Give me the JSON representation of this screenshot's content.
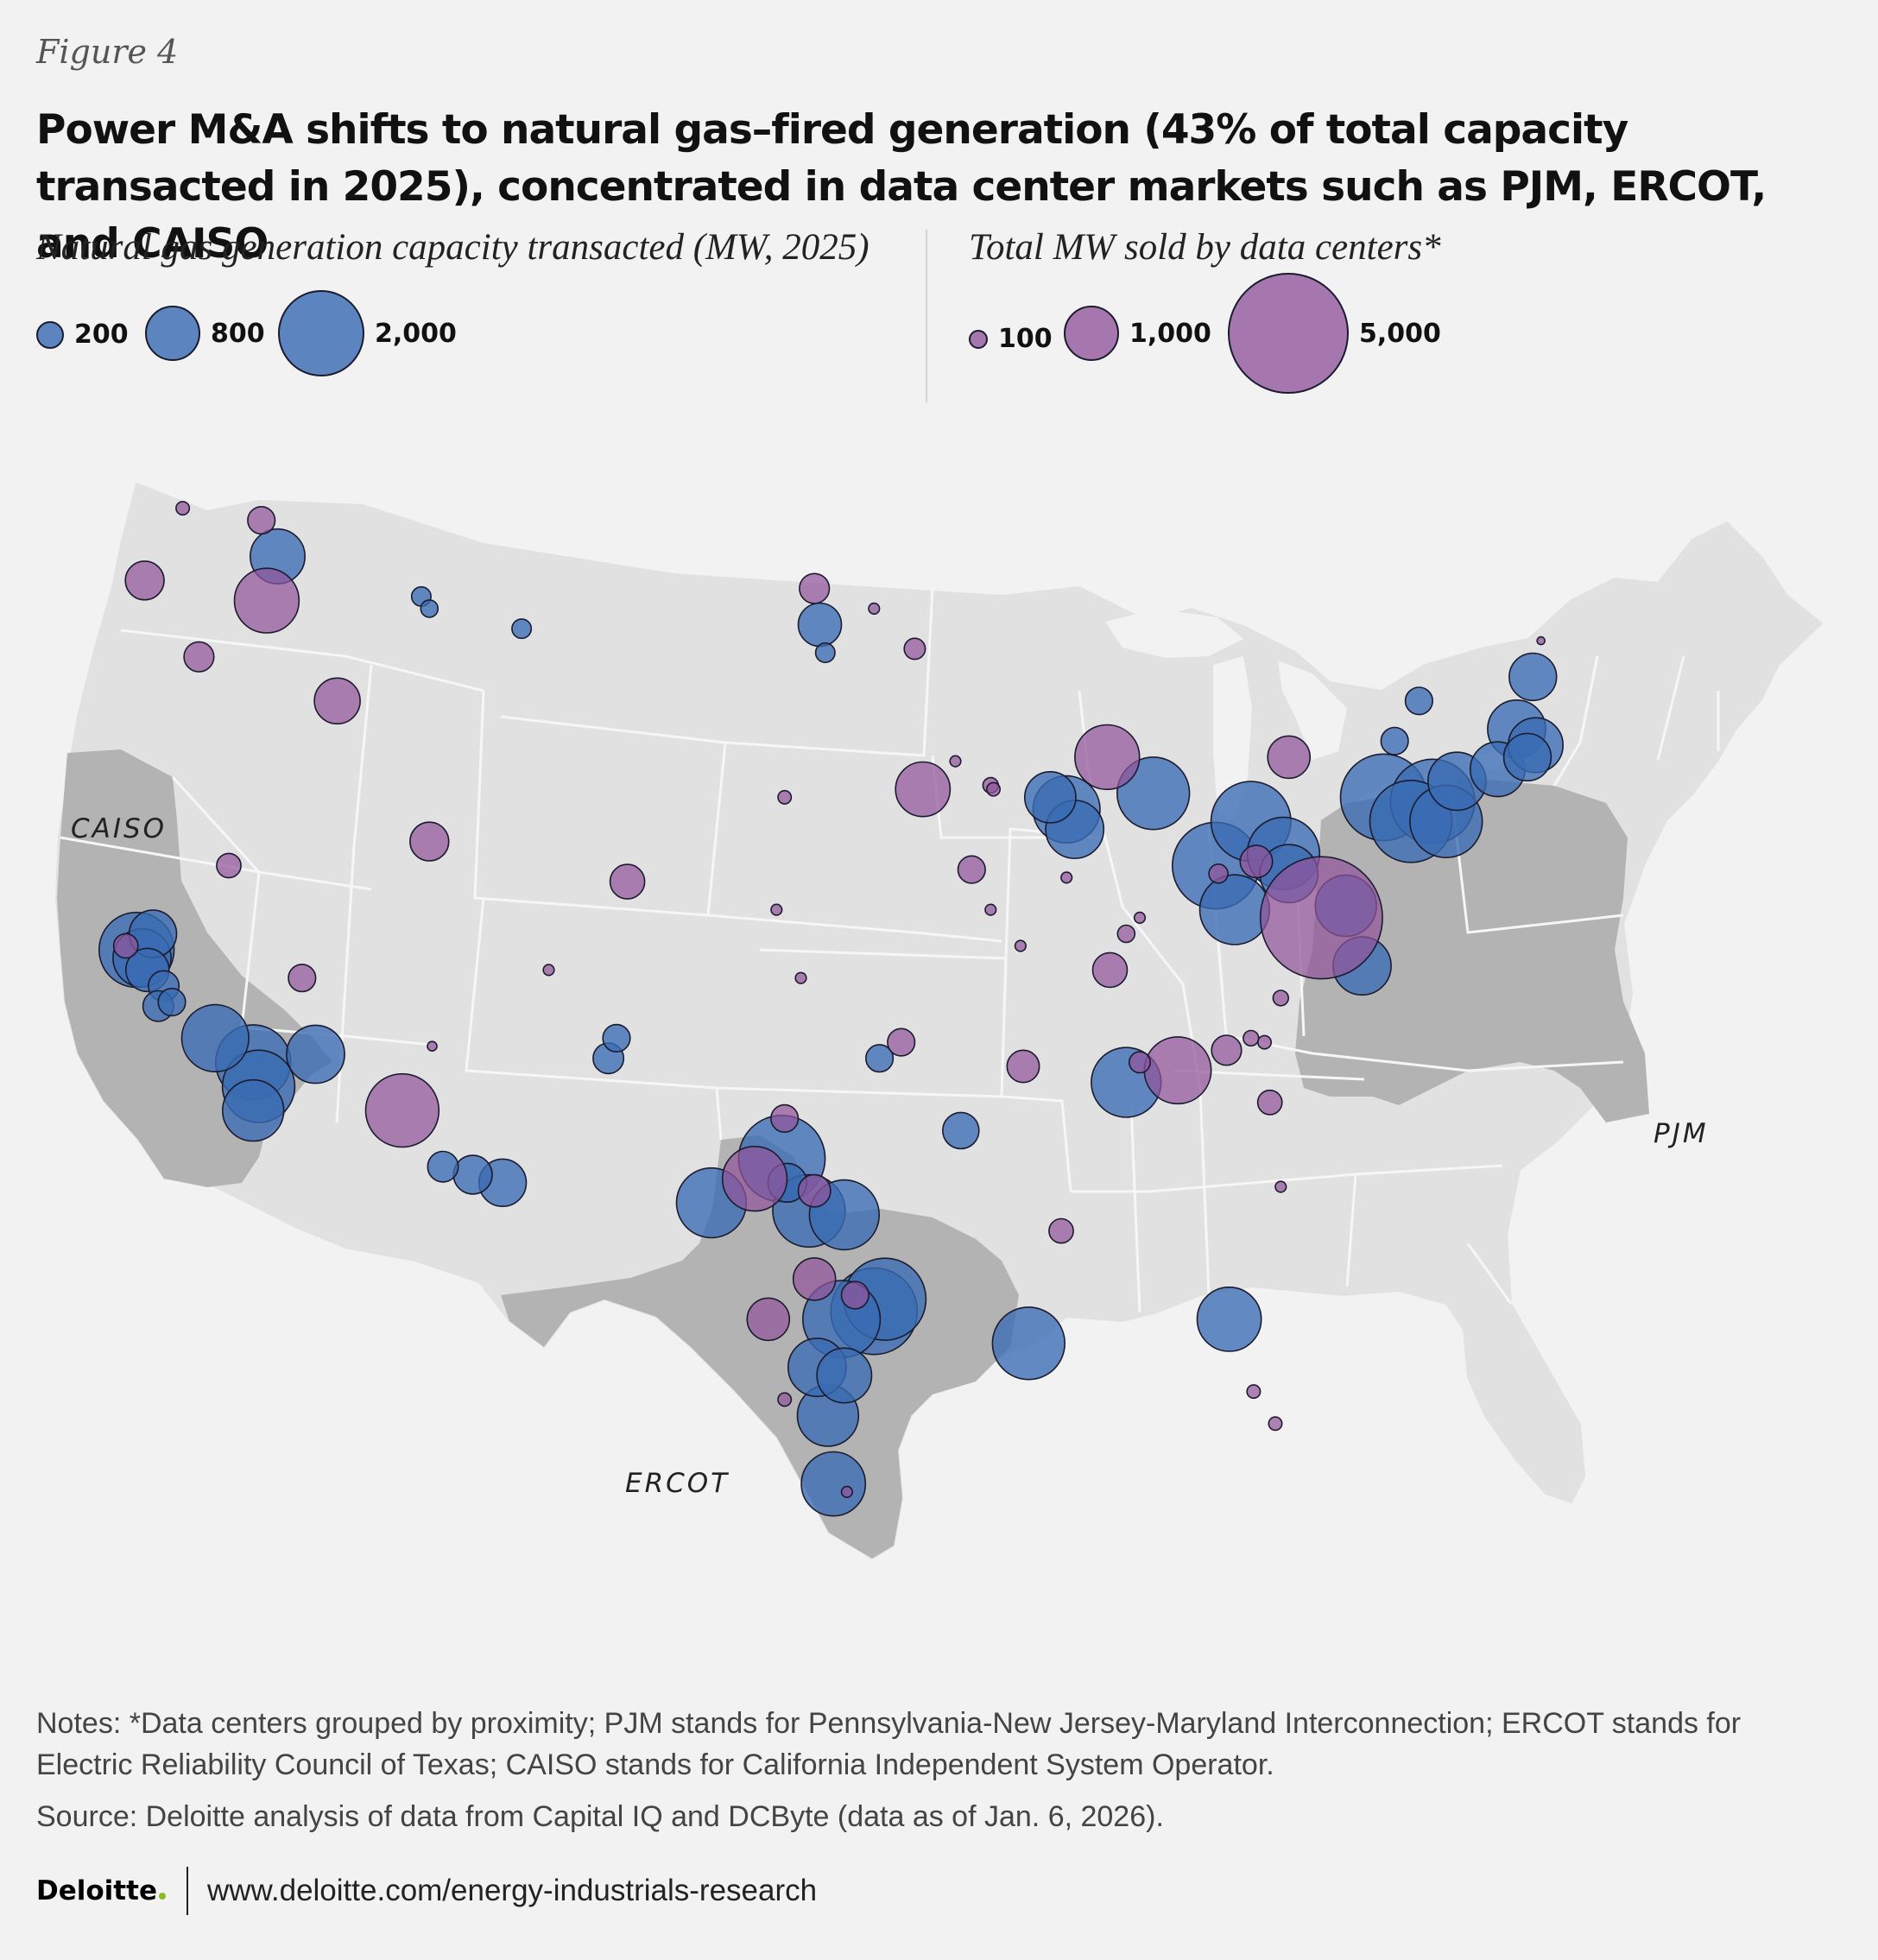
{
  "figure_label": "Figure 4",
  "title": "Power M&A shifts to natural gas–fired generation (43% of total capacity transacted in 2025), concentrated in data center markets such as PJM, ERCOT, and CAISO",
  "legend_gas": {
    "title": "Natural gas generation capacity transacted (MW, 2025)",
    "color": "#3a6cb4",
    "items": [
      {
        "label": "200",
        "value": 200
      },
      {
        "label": "800",
        "value": 800
      },
      {
        "label": "2,000",
        "value": 2000
      }
    ]
  },
  "legend_dc": {
    "title": "Total MW sold by data centers*",
    "color": "#91559b",
    "items": [
      {
        "label": "100",
        "value": 100
      },
      {
        "label": "1,000",
        "value": 1000
      },
      {
        "label": "5,000",
        "value": 5000
      }
    ]
  },
  "map": {
    "regions": [
      {
        "name": "CAISO",
        "label": "CAISO"
      },
      {
        "name": "PJM",
        "label": "PJM"
      },
      {
        "name": "ERCOT",
        "label": "ERCOT"
      }
    ],
    "colors": {
      "land": "#e1e1e1",
      "region": "#b3b3b3",
      "border": "#f6f6f6",
      "outline": "#1b1b2e"
    },
    "gas_plants": [
      {
        "lon": -117.0,
        "lat": 47.6,
        "mw": 800
      },
      {
        "lon": -111.7,
        "lat": 46.6,
        "mw": 100
      },
      {
        "lon": -111.4,
        "lat": 46.3,
        "mw": 80
      },
      {
        "lon": -108.0,
        "lat": 45.8,
        "mw": 100
      },
      {
        "lon": -121.6,
        "lat": 38.2,
        "mw": 600
      },
      {
        "lon": -122.2,
        "lat": 37.8,
        "mw": 1500
      },
      {
        "lon": -122.0,
        "lat": 37.6,
        "mw": 900
      },
      {
        "lon": -121.8,
        "lat": 37.3,
        "mw": 500
      },
      {
        "lon": -121.2,
        "lat": 36.9,
        "mw": 250
      },
      {
        "lon": -120.9,
        "lat": 36.5,
        "mw": 200
      },
      {
        "lon": -121.4,
        "lat": 36.4,
        "mw": 250
      },
      {
        "lon": -119.3,
        "lat": 35.6,
        "mw": 1200
      },
      {
        "lon": -117.9,
        "lat": 35.0,
        "mw": 1500
      },
      {
        "lon": -117.7,
        "lat": 34.4,
        "mw": 1400
      },
      {
        "lon": -117.9,
        "lat": 33.8,
        "mw": 1000
      },
      {
        "lon": -115.6,
        "lat": 35.2,
        "mw": 900
      },
      {
        "lon": -110.9,
        "lat": 32.4,
        "mw": 250
      },
      {
        "lon": -109.8,
        "lat": 32.2,
        "mw": 400
      },
      {
        "lon": -108.7,
        "lat": 32.0,
        "mw": 600
      },
      {
        "lon": -104.8,
        "lat": 35.1,
        "mw": 250
      },
      {
        "lon": -104.5,
        "lat": 35.6,
        "mw": 200
      },
      {
        "lon": -97.0,
        "lat": 45.9,
        "mw": 500
      },
      {
        "lon": -96.8,
        "lat": 45.2,
        "mw": 100
      },
      {
        "lon": -94.8,
        "lat": 35.1,
        "mw": 200
      },
      {
        "lon": -98.4,
        "lat": 32.6,
        "mw": 2000
      },
      {
        "lon": -98.2,
        "lat": 32.0,
        "mw": 400
      },
      {
        "lon": -97.4,
        "lat": 31.3,
        "mw": 1400
      },
      {
        "lon": -96.1,
        "lat": 31.2,
        "mw": 1300
      },
      {
        "lon": -101.0,
        "lat": 31.5,
        "mw": 1300
      },
      {
        "lon": -96.2,
        "lat": 28.6,
        "mw": 1600
      },
      {
        "lon": -95.0,
        "lat": 28.8,
        "mw": 2000
      },
      {
        "lon": -94.6,
        "lat": 29.1,
        "mw": 1800
      },
      {
        "lon": -97.1,
        "lat": 27.4,
        "mw": 900
      },
      {
        "lon": -96.1,
        "lat": 27.2,
        "mw": 800
      },
      {
        "lon": -96.7,
        "lat": 26.2,
        "mw": 1000
      },
      {
        "lon": -96.5,
        "lat": 24.5,
        "mw": 1100
      },
      {
        "lon": -91.8,
        "lat": 33.3,
        "mw": 350
      },
      {
        "lon": -85.7,
        "lat": 34.5,
        "mw": 1300
      },
      {
        "lon": -89.3,
        "lat": 28.0,
        "mw": 1400
      },
      {
        "lon": -81.9,
        "lat": 28.6,
        "mw": 1100
      },
      {
        "lon": -88.5,
        "lat": 41.6,
        "mw": 700
      },
      {
        "lon": -87.9,
        "lat": 41.3,
        "mw": 1200
      },
      {
        "lon": -87.6,
        "lat": 40.8,
        "mw": 900
      },
      {
        "lon": -84.7,
        "lat": 41.7,
        "mw": 1400
      },
      {
        "lon": -81.1,
        "lat": 41.0,
        "mw": 1700
      },
      {
        "lon": -82.4,
        "lat": 39.9,
        "mw": 2000
      },
      {
        "lon": -81.7,
        "lat": 38.8,
        "mw": 1300
      },
      {
        "lon": -79.9,
        "lat": 40.2,
        "mw": 1400
      },
      {
        "lon": -79.7,
        "lat": 39.7,
        "mw": 900
      },
      {
        "lon": -77.6,
        "lat": 38.9,
        "mw": 1000
      },
      {
        "lon": -77.0,
        "lat": 37.4,
        "mw": 900
      },
      {
        "lon": -76.2,
        "lat": 41.6,
        "mw": 2000
      },
      {
        "lon": -75.2,
        "lat": 41.0,
        "mw": 1800
      },
      {
        "lon": -74.4,
        "lat": 41.5,
        "mw": 1900
      },
      {
        "lon": -73.9,
        "lat": 41.0,
        "mw": 1400
      },
      {
        "lon": -73.5,
        "lat": 42.0,
        "mw": 900
      },
      {
        "lon": -72.0,
        "lat": 42.3,
        "mw": 800
      },
      {
        "lon": -71.3,
        "lat": 43.3,
        "mw": 900
      },
      {
        "lon": -70.7,
        "lat": 44.6,
        "mw": 600
      },
      {
        "lon": -70.6,
        "lat": 42.9,
        "mw": 800
      },
      {
        "lon": -70.9,
        "lat": 42.6,
        "mw": 600
      },
      {
        "lon": -74.9,
        "lat": 44.0,
        "mw": 200
      },
      {
        "lon": -75.8,
        "lat": 43.0,
        "mw": 200
      }
    ],
    "data_centers": [
      {
        "lon": -120.5,
        "lat": 48.8,
        "mw": 60
      },
      {
        "lon": -117.6,
        "lat": 48.5,
        "mw": 250
      },
      {
        "lon": -121.9,
        "lat": 47.0,
        "mw": 500
      },
      {
        "lon": -117.4,
        "lat": 46.5,
        "mw": 1400
      },
      {
        "lon": -119.9,
        "lat": 45.1,
        "mw": 300
      },
      {
        "lon": -114.8,
        "lat": 44.0,
        "mw": 700
      },
      {
        "lon": -118.8,
        "lat": 39.9,
        "mw": 200
      },
      {
        "lon": -111.4,
        "lat": 40.5,
        "mw": 500
      },
      {
        "lon": -104.1,
        "lat": 39.5,
        "mw": 400
      },
      {
        "lon": -116.1,
        "lat": 37.1,
        "mw": 250
      },
      {
        "lon": -112.4,
        "lat": 33.8,
        "mw": 1800
      },
      {
        "lon": -122.6,
        "lat": 37.9,
        "mw": 200
      },
      {
        "lon": -97.2,
        "lat": 46.8,
        "mw": 300
      },
      {
        "lon": -93.5,
        "lat": 45.3,
        "mw": 150
      },
      {
        "lon": -93.2,
        "lat": 41.8,
        "mw": 1000
      },
      {
        "lon": -98.3,
        "lat": 41.6,
        "mw": 60
      },
      {
        "lon": -90.7,
        "lat": 41.9,
        "mw": 80
      },
      {
        "lon": -90.6,
        "lat": 41.8,
        "mw": 60
      },
      {
        "lon": -91.4,
        "lat": 39.8,
        "mw": 250
      },
      {
        "lon": -98.6,
        "lat": 38.8,
        "mw": 40
      },
      {
        "lon": -94.0,
        "lat": 35.5,
        "mw": 250
      },
      {
        "lon": -98.3,
        "lat": 33.6,
        "mw": 250
      },
      {
        "lon": -99.4,
        "lat": 32.1,
        "mw": 1400
      },
      {
        "lon": -97.2,
        "lat": 29.6,
        "mw": 600
      },
      {
        "lon": -97.2,
        "lat": 31.8,
        "mw": 350
      },
      {
        "lon": -98.9,
        "lat": 28.6,
        "mw": 600
      },
      {
        "lon": -95.7,
        "lat": 29.2,
        "mw": 250
      },
      {
        "lon": -98.3,
        "lat": 26.6,
        "mw": 60
      },
      {
        "lon": -96.0,
        "lat": 24.3,
        "mw": 40
      },
      {
        "lon": -89.5,
        "lat": 34.9,
        "mw": 350
      },
      {
        "lon": -88.1,
        "lat": 30.8,
        "mw": 200
      },
      {
        "lon": -85.2,
        "lat": 35.0,
        "mw": 150
      },
      {
        "lon": -83.8,
        "lat": 34.8,
        "mw": 1500
      },
      {
        "lon": -82.0,
        "lat": 35.3,
        "mw": 300
      },
      {
        "lon": -80.4,
        "lat": 34.0,
        "mw": 200
      },
      {
        "lon": -80.6,
        "lat": 35.5,
        "mw": 60
      },
      {
        "lon": -86.3,
        "lat": 37.3,
        "mw": 400
      },
      {
        "lon": -85.2,
        "lat": 38.6,
        "mw": 40
      },
      {
        "lon": -82.3,
        "lat": 39.7,
        "mw": 120
      },
      {
        "lon": -80.9,
        "lat": 40.0,
        "mw": 350
      },
      {
        "lon": -78.5,
        "lat": 38.6,
        "mw": 5000
      },
      {
        "lon": -79.7,
        "lat": 42.6,
        "mw": 600
      },
      {
        "lon": -86.4,
        "lat": 42.6,
        "mw": 1400
      },
      {
        "lon": -85.7,
        "lat": 38.2,
        "mw": 100
      },
      {
        "lon": -90.7,
        "lat": 38.8,
        "mw": 40
      },
      {
        "lon": -87.9,
        "lat": 39.6,
        "mw": 40
      },
      {
        "lon": -89.6,
        "lat": 37.9,
        "mw": 40
      },
      {
        "lon": -81.1,
        "lat": 35.6,
        "mw": 80
      },
      {
        "lon": -80.0,
        "lat": 31.9,
        "mw": 40
      },
      {
        "lon": -80.0,
        "lat": 36.6,
        "mw": 80
      },
      {
        "lon": -81.0,
        "lat": 26.8,
        "mw": 60
      },
      {
        "lon": -80.2,
        "lat": 26.0,
        "mw": 60
      },
      {
        "lon": -70.4,
        "lat": 45.5,
        "mw": 20
      },
      {
        "lon": -111.3,
        "lat": 35.4,
        "mw": 30
      },
      {
        "lon": -95.0,
        "lat": 46.3,
        "mw": 40
      },
      {
        "lon": -92.0,
        "lat": 42.5,
        "mw": 40
      },
      {
        "lon": -97.7,
        "lat": 37.1,
        "mw": 40
      },
      {
        "lon": -107.0,
        "lat": 37.3,
        "mw": 40
      }
    ]
  },
  "notes": "Notes: *Data centers grouped by proximity; PJM stands for Pennsylvania-New Jersey-Maryland Interconnection; ERCOT stands for Electric Reliability Council of Texas; CAISO stands for California Independent System Operator.",
  "source": "Source: Deloitte analysis of data from Capital IQ and DCByte (data as of Jan. 6, 2026).",
  "footer": {
    "logo": "Deloitte",
    "url": "www.deloitte.com/energy-industrials-research"
  }
}
